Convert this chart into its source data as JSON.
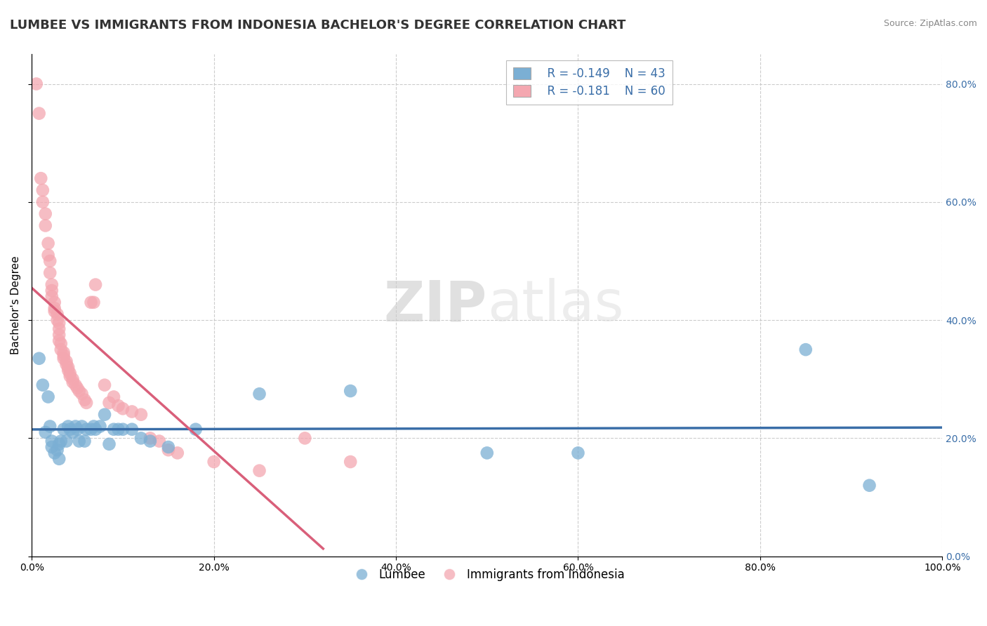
{
  "title": "LUMBEE VS IMMIGRANTS FROM INDONESIA BACHELOR'S DEGREE CORRELATION CHART",
  "source": "Source: ZipAtlas.com",
  "xlabel": "",
  "ylabel": "Bachelor's Degree",
  "watermark_zip": "ZIP",
  "watermark_atlas": "atlas",
  "xlim": [
    0.0,
    1.0
  ],
  "ylim": [
    0.0,
    0.85
  ],
  "xticks": [
    0.0,
    0.2,
    0.4,
    0.6,
    0.8,
    1.0
  ],
  "yticks_right": [
    0.0,
    0.2,
    0.4,
    0.6,
    0.8
  ],
  "legend_r1": "R = -0.149",
  "legend_n1": "N = 43",
  "legend_r2": "R = -0.181",
  "legend_n2": "N = 60",
  "blue_color": "#7BAFD4",
  "pink_color": "#F4A7B0",
  "blue_line_color": "#3A6EA8",
  "pink_line_color": "#D95F7A",
  "lumbee_x": [
    0.008,
    0.012,
    0.015,
    0.018,
    0.02,
    0.022,
    0.022,
    0.025,
    0.028,
    0.03,
    0.03,
    0.032,
    0.035,
    0.038,
    0.04,
    0.042,
    0.045,
    0.048,
    0.05,
    0.052,
    0.055,
    0.058,
    0.06,
    0.065,
    0.068,
    0.07,
    0.075,
    0.08,
    0.085,
    0.09,
    0.095,
    0.1,
    0.11,
    0.12,
    0.13,
    0.15,
    0.18,
    0.25,
    0.35,
    0.5,
    0.6,
    0.85,
    0.92
  ],
  "lumbee_y": [
    0.335,
    0.29,
    0.21,
    0.27,
    0.22,
    0.195,
    0.185,
    0.175,
    0.18,
    0.19,
    0.165,
    0.195,
    0.215,
    0.195,
    0.22,
    0.215,
    0.21,
    0.22,
    0.215,
    0.195,
    0.22,
    0.195,
    0.215,
    0.215,
    0.22,
    0.215,
    0.22,
    0.24,
    0.19,
    0.215,
    0.215,
    0.215,
    0.215,
    0.2,
    0.195,
    0.185,
    0.215,
    0.275,
    0.28,
    0.175,
    0.175,
    0.35,
    0.12
  ],
  "indonesia_x": [
    0.005,
    0.008,
    0.01,
    0.012,
    0.012,
    0.015,
    0.015,
    0.018,
    0.018,
    0.02,
    0.02,
    0.022,
    0.022,
    0.022,
    0.025,
    0.025,
    0.025,
    0.028,
    0.028,
    0.03,
    0.03,
    0.03,
    0.03,
    0.032,
    0.032,
    0.035,
    0.035,
    0.035,
    0.038,
    0.038,
    0.04,
    0.04,
    0.042,
    0.042,
    0.045,
    0.045,
    0.048,
    0.05,
    0.052,
    0.055,
    0.058,
    0.06,
    0.065,
    0.068,
    0.07,
    0.08,
    0.085,
    0.09,
    0.095,
    0.1,
    0.11,
    0.12,
    0.13,
    0.14,
    0.15,
    0.16,
    0.2,
    0.25,
    0.3,
    0.35
  ],
  "indonesia_y": [
    0.8,
    0.75,
    0.64,
    0.62,
    0.6,
    0.58,
    0.56,
    0.53,
    0.51,
    0.5,
    0.48,
    0.46,
    0.45,
    0.44,
    0.43,
    0.42,
    0.415,
    0.41,
    0.4,
    0.395,
    0.385,
    0.375,
    0.365,
    0.36,
    0.35,
    0.345,
    0.34,
    0.335,
    0.33,
    0.325,
    0.32,
    0.315,
    0.31,
    0.305,
    0.3,
    0.295,
    0.29,
    0.285,
    0.28,
    0.275,
    0.265,
    0.26,
    0.43,
    0.43,
    0.46,
    0.29,
    0.26,
    0.27,
    0.255,
    0.25,
    0.245,
    0.24,
    0.2,
    0.195,
    0.18,
    0.175,
    0.16,
    0.145,
    0.2,
    0.16
  ],
  "background_color": "#FFFFFF",
  "grid_color": "#CCCCCC",
  "grid_linestyle": "--",
  "title_fontsize": 13,
  "axis_label_fontsize": 11,
  "tick_fontsize": 10,
  "legend_fontsize": 12
}
